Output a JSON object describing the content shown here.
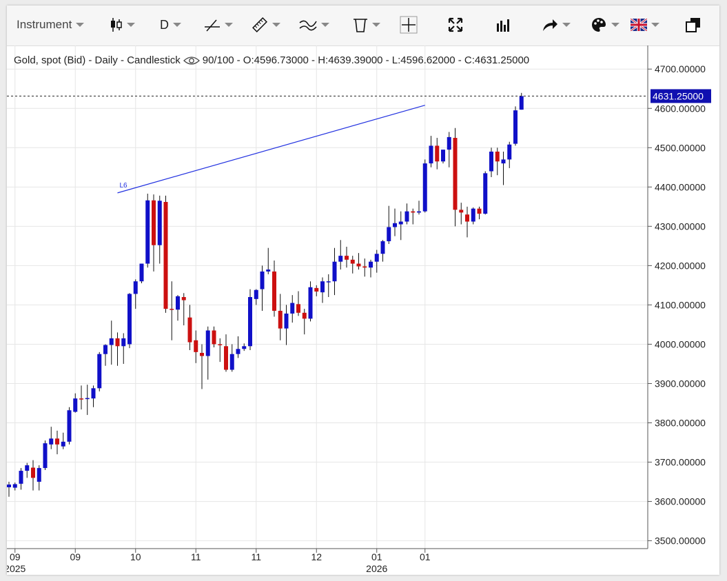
{
  "toolbar": {
    "instrument_label": "Instrument",
    "timeframe_label": "D",
    "icons": [
      "candlestick-icon",
      "line-tool-icon",
      "ruler-icon",
      "indicator-icon",
      "trash-icon",
      "crosshair-icon",
      "fullscreen-icon",
      "volume-bars-icon",
      "share-icon",
      "palette-icon",
      "uk-flag-icon",
      "duplicate-window-icon"
    ]
  },
  "legend": {
    "instrument": "Gold, spot (Bid) - Daily - Candlestick",
    "quality": "90/100",
    "ohlc": "- O:4596.73000 - H:4639.39000 - L:4596.62000 - C:4631.25000"
  },
  "price_tag": "4631.25000",
  "trendline_label": "L6",
  "colors": {
    "up": "#1010c8",
    "down": "#cc1010",
    "trend": "#2030e0",
    "tag_bg": "#1010b0"
  },
  "chart_data": {
    "type": "candlestick",
    "title": "Gold, spot (Bid) - Daily - Candlestick",
    "ylim": [
      3480,
      4760
    ],
    "yticks": [
      "3500.00000",
      "3600.00000",
      "3700.00000",
      "3800.00000",
      "3900.00000",
      "4000.00000",
      "4100.00000",
      "4200.00000",
      "4300.00000",
      "4400.00000",
      "4500.00000",
      "4600.00000",
      "4700.00000"
    ],
    "ytick_values": [
      3500,
      3600,
      3700,
      3800,
      3900,
      4000,
      4100,
      4200,
      4300,
      4400,
      4500,
      4600,
      4700
    ],
    "xticks": [
      {
        "month": "09",
        "year": "2025",
        "index": 1
      },
      {
        "month": "09",
        "year": "",
        "index": 11
      },
      {
        "month": "10",
        "year": "",
        "index": 21
      },
      {
        "month": "11",
        "year": "",
        "index": 31
      },
      {
        "month": "11",
        "year": "",
        "index": 41
      },
      {
        "month": "12",
        "year": "",
        "index": 51
      },
      {
        "month": "01",
        "year": "2026",
        "index": 61
      },
      {
        "month": "01",
        "year": "",
        "index": 69
      }
    ],
    "last_close": 4631.25,
    "trendline": {
      "from": {
        "index": 18,
        "price": 4385
      },
      "to": {
        "index": 69,
        "price": 4608
      }
    },
    "candles": [
      {
        "o": 3636,
        "h": 3650,
        "l": 3612,
        "c": 3643
      },
      {
        "o": 3635,
        "h": 3648,
        "l": 3628,
        "c": 3644
      },
      {
        "o": 3645,
        "h": 3685,
        "l": 3630,
        "c": 3678
      },
      {
        "o": 3678,
        "h": 3698,
        "l": 3660,
        "c": 3692
      },
      {
        "o": 3686,
        "h": 3705,
        "l": 3628,
        "c": 3660
      },
      {
        "o": 3650,
        "h": 3692,
        "l": 3628,
        "c": 3685
      },
      {
        "o": 3685,
        "h": 3755,
        "l": 3680,
        "c": 3748
      },
      {
        "o": 3745,
        "h": 3790,
        "l": 3733,
        "c": 3760
      },
      {
        "o": 3760,
        "h": 3780,
        "l": 3720,
        "c": 3745
      },
      {
        "o": 3740,
        "h": 3775,
        "l": 3733,
        "c": 3752
      },
      {
        "o": 3752,
        "h": 3840,
        "l": 3745,
        "c": 3832
      },
      {
        "o": 3828,
        "h": 3875,
        "l": 3826,
        "c": 3862
      },
      {
        "o": 3862,
        "h": 3895,
        "l": 3834,
        "c": 3861
      },
      {
        "o": 3861,
        "h": 3897,
        "l": 3820,
        "c": 3863
      },
      {
        "o": 3862,
        "h": 3895,
        "l": 3840,
        "c": 3888
      },
      {
        "o": 3888,
        "h": 3980,
        "l": 3880,
        "c": 3975
      },
      {
        "o": 3975,
        "h": 4000,
        "l": 3945,
        "c": 3998
      },
      {
        "o": 3998,
        "h": 4060,
        "l": 3948,
        "c": 4015
      },
      {
        "o": 4015,
        "h": 4030,
        "l": 3945,
        "c": 3995
      },
      {
        "o": 3995,
        "h": 4028,
        "l": 3950,
        "c": 4015
      },
      {
        "o": 4000,
        "h": 4130,
        "l": 3990,
        "c": 4128
      },
      {
        "o": 4128,
        "h": 4165,
        "l": 4090,
        "c": 4160
      },
      {
        "o": 4160,
        "h": 4205,
        "l": 4155,
        "c": 4205
      },
      {
        "o": 4205,
        "h": 4383,
        "l": 4195,
        "c": 4366
      },
      {
        "o": 4366,
        "h": 4381,
        "l": 4185,
        "c": 4252
      },
      {
        "o": 4252,
        "h": 4378,
        "l": 4205,
        "c": 4365
      },
      {
        "o": 4362,
        "h": 4378,
        "l": 4080,
        "c": 4090
      },
      {
        "o": 4090,
        "h": 4160,
        "l": 4010,
        "c": 4088
      },
      {
        "o": 4088,
        "h": 4125,
        "l": 4060,
        "c": 4122
      },
      {
        "o": 4120,
        "h": 4130,
        "l": 4048,
        "c": 4112
      },
      {
        "o": 4068,
        "h": 4100,
        "l": 3985,
        "c": 4005
      },
      {
        "o": 4010,
        "h": 4035,
        "l": 3952,
        "c": 3980
      },
      {
        "o": 3978,
        "h": 4000,
        "l": 3886,
        "c": 3970
      },
      {
        "o": 3970,
        "h": 4045,
        "l": 3910,
        "c": 4035
      },
      {
        "o": 4035,
        "h": 4045,
        "l": 3992,
        "c": 4000
      },
      {
        "o": 4000,
        "h": 4015,
        "l": 3955,
        "c": 3998
      },
      {
        "o": 3995,
        "h": 4025,
        "l": 3930,
        "c": 3935
      },
      {
        "o": 3935,
        "h": 4000,
        "l": 3930,
        "c": 3975
      },
      {
        "o": 3975,
        "h": 4020,
        "l": 3965,
        "c": 3988
      },
      {
        "o": 3988,
        "h": 4002,
        "l": 3983,
        "c": 3995
      },
      {
        "o": 3995,
        "h": 4140,
        "l": 3985,
        "c": 4120
      },
      {
        "o": 4115,
        "h": 4140,
        "l": 4100,
        "c": 4138
      },
      {
        "o": 4140,
        "h": 4200,
        "l": 4085,
        "c": 4185
      },
      {
        "o": 4185,
        "h": 4245,
        "l": 4178,
        "c": 4190
      },
      {
        "o": 4185,
        "h": 4213,
        "l": 4070,
        "c": 4085
      },
      {
        "o": 4085,
        "h": 4128,
        "l": 4010,
        "c": 4040
      },
      {
        "o": 4040,
        "h": 4100,
        "l": 3998,
        "c": 4078
      },
      {
        "o": 4078,
        "h": 4125,
        "l": 4055,
        "c": 4105
      },
      {
        "o": 4102,
        "h": 4135,
        "l": 4072,
        "c": 4080
      },
      {
        "o": 4080,
        "h": 4090,
        "l": 4025,
        "c": 4065
      },
      {
        "o": 4065,
        "h": 4160,
        "l": 4058,
        "c": 4145
      },
      {
        "o": 4143,
        "h": 4150,
        "l": 4122,
        "c": 4134
      },
      {
        "o": 4132,
        "h": 4170,
        "l": 4105,
        "c": 4160
      },
      {
        "o": 4158,
        "h": 4178,
        "l": 4120,
        "c": 4160
      },
      {
        "o": 4160,
        "h": 4245,
        "l": 4125,
        "c": 4210
      },
      {
        "o": 4210,
        "h": 4265,
        "l": 4190,
        "c": 4225
      },
      {
        "o": 4225,
        "h": 4248,
        "l": 4195,
        "c": 4215
      },
      {
        "o": 4215,
        "h": 4225,
        "l": 4180,
        "c": 4205
      },
      {
        "o": 4205,
        "h": 4232,
        "l": 4190,
        "c": 4198
      },
      {
        "o": 4198,
        "h": 4218,
        "l": 4172,
        "c": 4195
      },
      {
        "o": 4195,
        "h": 4215,
        "l": 4170,
        "c": 4210
      },
      {
        "o": 4210,
        "h": 4240,
        "l": 4182,
        "c": 4230
      },
      {
        "o": 4230,
        "h": 4265,
        "l": 4210,
        "c": 4262
      },
      {
        "o": 4262,
        "h": 4352,
        "l": 4255,
        "c": 4298
      },
      {
        "o": 4298,
        "h": 4345,
        "l": 4275,
        "c": 4308
      },
      {
        "o": 4305,
        "h": 4338,
        "l": 4265,
        "c": 4312
      },
      {
        "o": 4312,
        "h": 4358,
        "l": 4305,
        "c": 4338
      },
      {
        "o": 4338,
        "h": 4345,
        "l": 4305,
        "c": 4335
      },
      {
        "o": 4335,
        "h": 4365,
        "l": 4330,
        "c": 4338
      },
      {
        "o": 4338,
        "h": 4470,
        "l": 4335,
        "c": 4460
      },
      {
        "o": 4460,
        "h": 4530,
        "l": 4450,
        "c": 4505
      },
      {
        "o": 4505,
        "h": 4525,
        "l": 4445,
        "c": 4465
      },
      {
        "o": 4465,
        "h": 4495,
        "l": 4460,
        "c": 4495
      },
      {
        "o": 4495,
        "h": 4540,
        "l": 4450,
        "c": 4527
      },
      {
        "o": 4525,
        "h": 4550,
        "l": 4300,
        "c": 4342
      },
      {
        "o": 4342,
        "h": 4360,
        "l": 4305,
        "c": 4335
      },
      {
        "o": 4330,
        "h": 4350,
        "l": 4272,
        "c": 4312
      },
      {
        "o": 4312,
        "h": 4348,
        "l": 4305,
        "c": 4345
      },
      {
        "o": 4345,
        "h": 4350,
        "l": 4318,
        "c": 4332
      },
      {
        "o": 4332,
        "h": 4440,
        "l": 4330,
        "c": 4435
      },
      {
        "o": 4440,
        "h": 4500,
        "l": 4425,
        "c": 4490
      },
      {
        "o": 4490,
        "h": 4500,
        "l": 4430,
        "c": 4465
      },
      {
        "o": 4460,
        "h": 4490,
        "l": 4405,
        "c": 4470
      },
      {
        "o": 4470,
        "h": 4515,
        "l": 4448,
        "c": 4508
      },
      {
        "o": 4510,
        "h": 4605,
        "l": 4505,
        "c": 4595
      },
      {
        "o": 4596.73,
        "h": 4639.39,
        "l": 4596.62,
        "c": 4631.25
      }
    ]
  }
}
